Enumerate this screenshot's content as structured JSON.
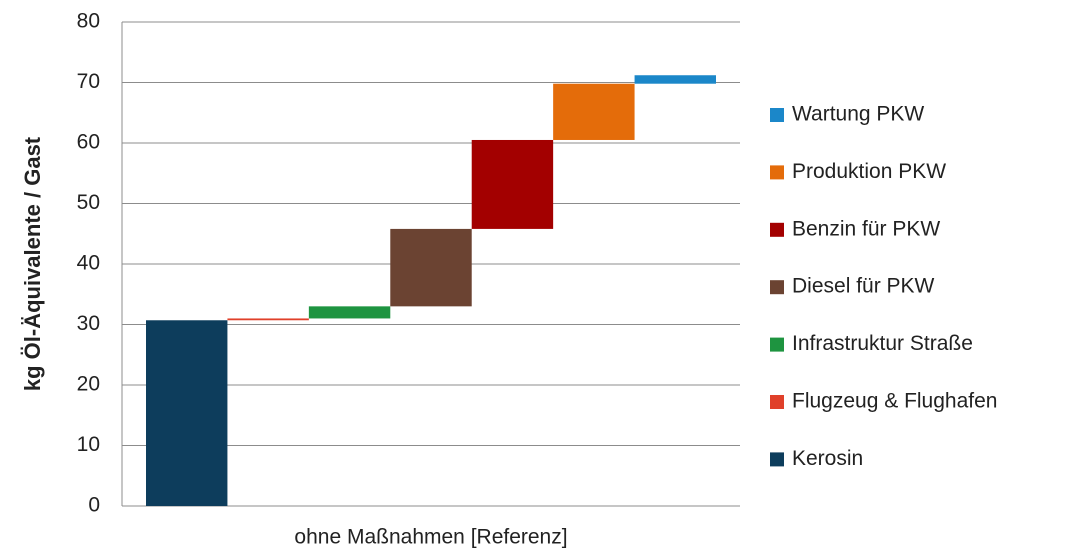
{
  "chart_data": {
    "type": "waterfall",
    "y_label": "kg Öl-Äquivalente / Gast",
    "categories": [
      "ohne Maßnahmen [Referenz]"
    ],
    "series": [
      {
        "name": "Kerosin",
        "color": "#0d3d5c",
        "values": [
          30.7
        ]
      },
      {
        "name": "Flugzeug & Flughafen",
        "color": "#e0402a",
        "values": [
          0.3
        ]
      },
      {
        "name": "Infrastruktur Straße",
        "color": "#1e9440",
        "values": [
          2.0
        ]
      },
      {
        "name": "Diesel für PKW",
        "color": "#6b4332",
        "values": [
          12.8
        ]
      },
      {
        "name": "Benzin für PKW",
        "color": "#a30000",
        "values": [
          14.7
        ]
      },
      {
        "name": "Produktion PKW",
        "color": "#e46c0a",
        "values": [
          9.3
        ]
      },
      {
        "name": "Wartung PKW",
        "color": "#1b87c9",
        "values": [
          1.4
        ]
      }
    ],
    "ylim": [
      0,
      80
    ],
    "yticks": [
      0,
      10,
      20,
      30,
      40,
      50,
      60,
      70,
      80
    ],
    "grid": true,
    "legend": "right",
    "legend_order": "reversed"
  }
}
